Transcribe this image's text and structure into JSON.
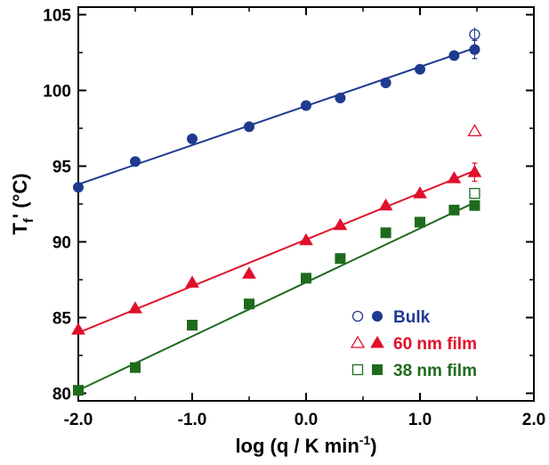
{
  "chart_data": {
    "type": "scatter",
    "xlabel": "log (q / K min",
    "xlabel_sup": "-1",
    "xlabel_tail": ")",
    "ylabel_main": "T",
    "ylabel_sub": "f",
    "ylabel_tail": "' (°C)",
    "xlim": [
      -2.0,
      2.0
    ],
    "ylim": [
      79.5,
      105.5
    ],
    "x_ticks": [
      -2.0,
      -1.0,
      0.0,
      1.0,
      2.0
    ],
    "x_tick_labels": [
      "-2.0",
      "-1.0",
      "0.0",
      "1.0",
      "2.0"
    ],
    "y_ticks": [
      80,
      85,
      90,
      95,
      100,
      105
    ],
    "y_tick_labels": [
      "80",
      "85",
      "90",
      "95",
      "100",
      "105"
    ],
    "grid": false,
    "legend_position": "bottom-right",
    "series": [
      {
        "name": "Bulk",
        "color": "#1f3a8f",
        "marker": "circle",
        "x": [
          -2.0,
          -1.5,
          -1.0,
          -0.5,
          0.0,
          0.3,
          0.7,
          1.0,
          1.3,
          1.48
        ],
        "y": [
          93.6,
          95.3,
          96.8,
          97.6,
          99.0,
          99.5,
          100.5,
          101.4,
          102.3,
          102.7
        ],
        "fit": [
          [
            -2.0,
            93.8
          ],
          [
            1.48,
            102.8
          ]
        ],
        "open_point": {
          "x": 1.48,
          "y": 103.7
        },
        "error_bar": {
          "x": 1.48,
          "y": 102.7,
          "err": 0.6
        }
      },
      {
        "name": "60 nm film",
        "color": "#e0102a",
        "marker": "triangle",
        "x": [
          -2.0,
          -1.5,
          -1.0,
          -0.5,
          0.0,
          0.3,
          0.7,
          1.0,
          1.3,
          1.48
        ],
        "y": [
          84.2,
          85.6,
          87.3,
          87.9,
          90.1,
          91.1,
          92.4,
          93.2,
          94.2,
          94.6
        ],
        "fit": [
          [
            -2.0,
            84.0
          ],
          [
            1.48,
            94.7
          ]
        ],
        "open_point": {
          "x": 1.48,
          "y": 97.3
        },
        "error_bar": {
          "x": 1.48,
          "y": 94.6,
          "err": 0.6
        }
      },
      {
        "name": "38 nm film",
        "color": "#1e6b1e",
        "marker": "square",
        "x": [
          -2.0,
          -1.5,
          -1.0,
          -0.5,
          0.0,
          0.3,
          0.7,
          1.0,
          1.3,
          1.48
        ],
        "y": [
          80.2,
          81.7,
          84.5,
          85.9,
          87.6,
          88.9,
          90.6,
          91.3,
          92.1,
          92.4
        ],
        "fit": [
          [
            -2.0,
            80.2
          ],
          [
            1.48,
            92.6
          ]
        ],
        "open_point": {
          "x": 1.48,
          "y": 93.2
        }
      }
    ]
  }
}
